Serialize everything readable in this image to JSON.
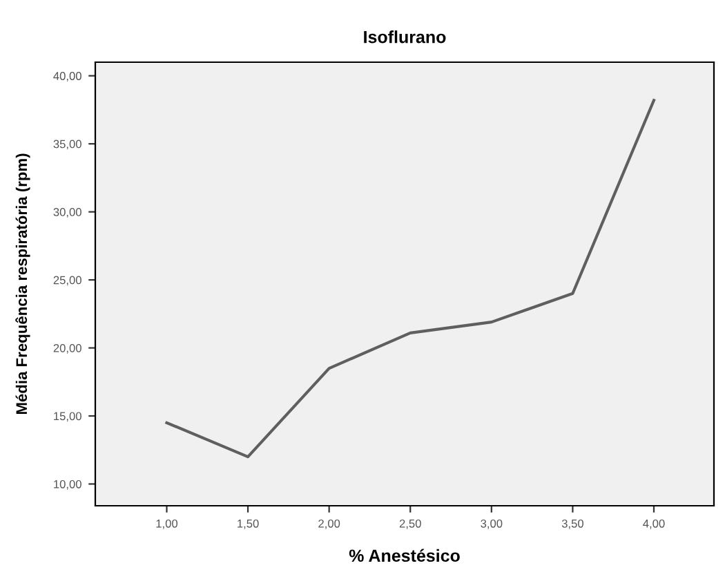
{
  "chart_data": {
    "type": "line",
    "title": "Isoflurano",
    "xlabel": "% Anestésico",
    "ylabel": "Média Frequência respiratória (rpm)",
    "x": [
      1.0,
      1.5,
      2.0,
      2.5,
      3.0,
      3.5,
      4.0
    ],
    "series": [
      {
        "color": "#5f5f5f",
        "values": [
          14.5,
          12.0,
          18.5,
          21.1,
          21.9,
          24.0,
          38.2
        ]
      }
    ],
    "xlim": [
      0.56,
      4.37
    ],
    "ylim": [
      8.4,
      41.0
    ],
    "xticks": [
      {
        "value": 1.0,
        "label": "1,00"
      },
      {
        "value": 1.5,
        "label": "1,50"
      },
      {
        "value": 2.0,
        "label": "2,00"
      },
      {
        "value": 2.5,
        "label": "2,50"
      },
      {
        "value": 3.0,
        "label": "3,00"
      },
      {
        "value": 3.5,
        "label": "3,50"
      },
      {
        "value": 4.0,
        "label": "4,00"
      }
    ],
    "yticks": [
      {
        "value": 10,
        "label": "10,00"
      },
      {
        "value": 15,
        "label": "15,00"
      },
      {
        "value": 20,
        "label": "20,00"
      },
      {
        "value": 25,
        "label": "25,00"
      },
      {
        "value": 30,
        "label": "30,00"
      },
      {
        "value": 35,
        "label": "35,00"
      },
      {
        "value": 40,
        "label": "40,00"
      }
    ],
    "grid": false,
    "legend": false,
    "marker": "none",
    "line_style": "solid"
  }
}
